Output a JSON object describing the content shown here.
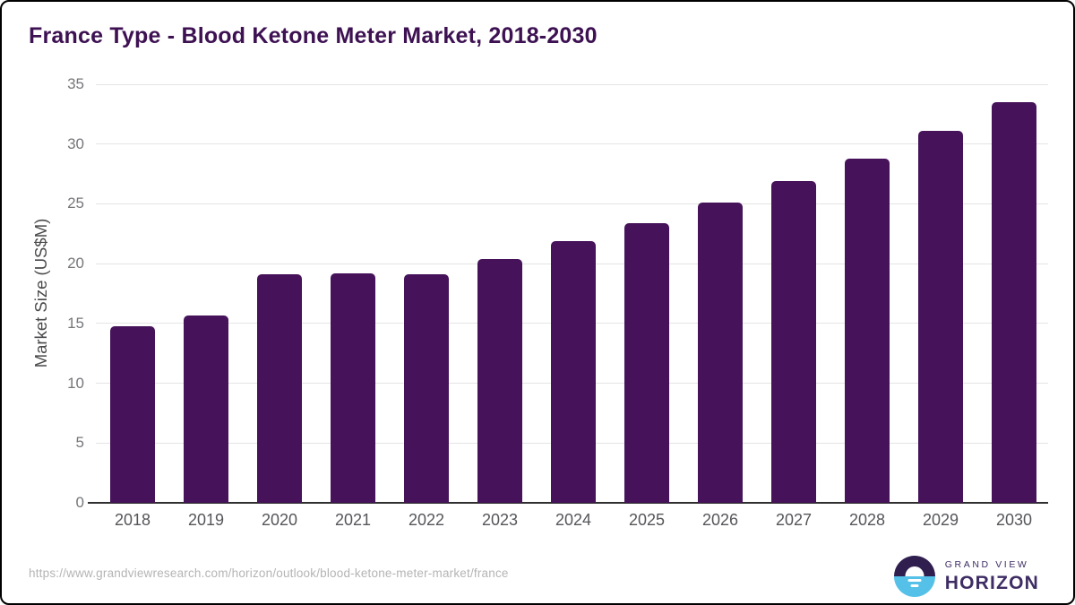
{
  "page": {
    "title": "France Type - Blood Ketone Meter Market, 2018-2030",
    "source_url": "https://www.grandviewresearch.com/horizon/outlook/blood-ketone-meter-market/france"
  },
  "chart_data": {
    "type": "bar",
    "title": "France Type - Blood Ketone Meter Market, 2018-2030",
    "categories": [
      "2018",
      "2019",
      "2020",
      "2021",
      "2022",
      "2023",
      "2024",
      "2025",
      "2026",
      "2027",
      "2028",
      "2029",
      "2030"
    ],
    "values": [
      14.8,
      15.7,
      19.1,
      19.2,
      19.1,
      20.4,
      21.9,
      23.4,
      25.1,
      26.9,
      28.8,
      31.1,
      33.5
    ],
    "xlabel": "",
    "ylabel": "Market Size (US$M)",
    "ylim": [
      0,
      35
    ],
    "ytick_interval": 5,
    "grid": true,
    "legend": "none",
    "bar_color": "#46125A"
  },
  "colors": {
    "title": "#3D1152",
    "gridline": "#e4e4e6",
    "axis_line": "#2f2f2f",
    "tick_label": "#76777A"
  },
  "branding": {
    "name_line1": "GRAND VIEW",
    "name_line2": "HORIZON",
    "logo_purple": "#2F1E4E",
    "logo_blue": "#56C1E8"
  }
}
